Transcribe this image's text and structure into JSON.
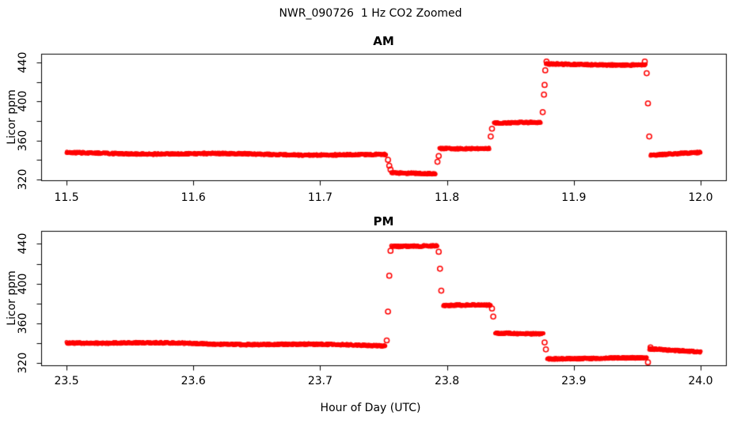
{
  "figure": {
    "title": "NWR_090726  1 Hz CO2 Zoomed",
    "xlabel": "Hour of Day (UTC)",
    "background_color": "#FFFFFF",
    "axis_color": "#000000",
    "point_color": "#FF0000"
  },
  "chart_data": [
    {
      "type": "scatter",
      "title": "AM",
      "ylabel": "Licor ppm",
      "marker": "open-circle",
      "color": "#FF0000",
      "grid": false,
      "legend": false,
      "sample_rate_hz": 1,
      "xlim": [
        11.48,
        12.02
      ],
      "ylim": [
        319,
        449
      ],
      "xticks": [
        11.5,
        11.6,
        11.7,
        11.8,
        11.9,
        12.0
      ],
      "xtick_labels": [
        "11.5",
        "11.6",
        "11.7",
        "11.8",
        "11.9",
        "12.0"
      ],
      "yticks": [
        320,
        340,
        360,
        380,
        400,
        420,
        440
      ],
      "ytick_labels": [
        "320",
        "",
        "360",
        "",
        "400",
        "",
        "440"
      ],
      "segments": [
        {
          "x_start": 11.5,
          "x_end": 11.752,
          "y_start": 347,
          "y_end": 345
        },
        {
          "x_start": 11.756,
          "x_end": 11.791,
          "y_start": 326,
          "y_end": 326
        },
        {
          "x_start": 11.794,
          "x_end": 11.8335,
          "y_start": 352,
          "y_end": 352
        },
        {
          "x_start": 11.837,
          "x_end": 11.874,
          "y_start": 378,
          "y_end": 378
        },
        {
          "x_start": 11.878,
          "x_end": 11.9565,
          "y_start": 438,
          "y_end": 438
        },
        {
          "x_start": 11.9605,
          "x_end": 12.0,
          "y_start": 345,
          "y_end": 347
        }
      ],
      "transition_points": [
        [
          11.7535,
          340
        ],
        [
          11.7545,
          334
        ],
        [
          11.7555,
          330
        ],
        [
          11.7925,
          338
        ],
        [
          11.7935,
          344
        ],
        [
          11.8345,
          364
        ],
        [
          11.8355,
          372
        ],
        [
          11.8755,
          389
        ],
        [
          11.8765,
          407
        ],
        [
          11.877,
          417
        ],
        [
          11.8775,
          432
        ],
        [
          11.8785,
          441
        ],
        [
          11.956,
          441
        ],
        [
          11.9575,
          429
        ],
        [
          11.9585,
          398
        ],
        [
          11.9595,
          364
        ]
      ]
    },
    {
      "type": "scatter",
      "title": "PM",
      "ylabel": "Licor ppm",
      "marker": "open-circle",
      "color": "#FF0000",
      "grid": false,
      "legend": false,
      "sample_rate_hz": 1,
      "xlim": [
        23.48,
        24.02
      ],
      "ylim": [
        318,
        453
      ],
      "xticks": [
        23.5,
        23.6,
        23.7,
        23.8,
        23.9,
        24.0
      ],
      "xtick_labels": [
        "23.5",
        "23.6",
        "23.7",
        "23.8",
        "23.9",
        "24.0"
      ],
      "yticks": [
        320,
        340,
        360,
        380,
        400,
        420,
        440
      ],
      "ytick_labels": [
        "320",
        "",
        "360",
        "",
        "400",
        "",
        "440"
      ],
      "segments": [
        {
          "x_start": 23.5,
          "x_end": 23.7515,
          "y_start": 341,
          "y_end": 338
        },
        {
          "x_start": 23.756,
          "x_end": 23.7925,
          "y_start": 438,
          "y_end": 438
        },
        {
          "x_start": 23.797,
          "x_end": 23.8345,
          "y_start": 378,
          "y_end": 378
        },
        {
          "x_start": 23.838,
          "x_end": 23.876,
          "y_start": 350,
          "y_end": 350
        },
        {
          "x_start": 23.879,
          "x_end": 23.9575,
          "y_start": 325,
          "y_end": 325
        },
        {
          "x_start": 23.9595,
          "x_end": 24.0,
          "y_start": 334,
          "y_end": 332
        }
      ],
      "transition_points": [
        [
          23.7525,
          343
        ],
        [
          23.7535,
          372
        ],
        [
          23.7545,
          408
        ],
        [
          23.7555,
          433
        ],
        [
          23.7935,
          432
        ],
        [
          23.7945,
          415
        ],
        [
          23.7955,
          393
        ],
        [
          23.8355,
          375
        ],
        [
          23.8365,
          367
        ],
        [
          23.877,
          341
        ],
        [
          23.878,
          334
        ],
        [
          23.9585,
          321
        ],
        [
          23.9605,
          336
        ]
      ]
    }
  ]
}
